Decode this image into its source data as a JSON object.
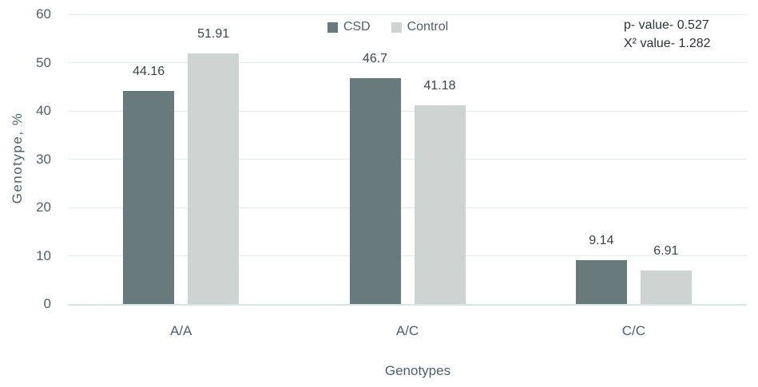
{
  "chart_data": {
    "type": "bar",
    "title": "",
    "categories": [
      "A/A",
      "A/C",
      "C/C"
    ],
    "series": [
      {
        "name": "CSD",
        "color": "#697a7c",
        "values": [
          44.16,
          46.7,
          9.14
        ]
      },
      {
        "name": "Control",
        "color": "#cdd4d1",
        "values": [
          51.91,
          41.18,
          6.91
        ]
      }
    ],
    "xlabel": "Genotypes",
    "ylabel": "Genotype, %",
    "ylim": [
      0,
      60
    ],
    "yticks": [
      0,
      10,
      20,
      30,
      40,
      50,
      60
    ],
    "grid": true,
    "legend_position": "top-center",
    "value_labels_shown": true
  },
  "annotation": {
    "p_value_line": "p- value- 0.527",
    "chi_square_line": "X² value- 1.282"
  }
}
